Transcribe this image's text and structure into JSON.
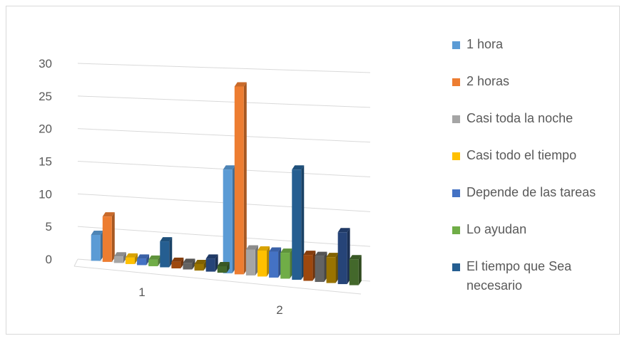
{
  "chart_data": {
    "type": "bar",
    "categories": [
      "1",
      "2"
    ],
    "ylim": [
      0,
      30
    ],
    "yticks": [
      "0",
      "5",
      "10",
      "15",
      "20",
      "25",
      "30"
    ],
    "grid": true,
    "legend_position": "right",
    "series": [
      {
        "name": "1 hora",
        "color": "#5b9bd5",
        "values": [
          4,
          16
        ]
      },
      {
        "name": "2 horas",
        "color": "#ed7d31",
        "values": [
          7,
          29
        ]
      },
      {
        "name": "Casi toda la noche",
        "color": "#a5a5a5",
        "values": [
          1,
          4
        ]
      },
      {
        "name": "Casi todo el tiempo",
        "color": "#ffc000",
        "values": [
          1,
          4
        ]
      },
      {
        "name": "Depende de las tareas",
        "color": "#4472c4",
        "values": [
          1,
          4
        ]
      },
      {
        "name": "Lo ayudan",
        "color": "#70ad47",
        "values": [
          1,
          4
        ]
      },
      {
        "name": "El tiempo que Sea necesario",
        "color": "#255e91",
        "values": [
          4,
          17
        ]
      },
      {
        "name": "",
        "color": "#9e480e",
        "values": [
          1,
          4
        ]
      },
      {
        "name": "",
        "color": "#636363",
        "values": [
          1,
          4
        ]
      },
      {
        "name": "",
        "color": "#997300",
        "values": [
          1,
          4
        ]
      },
      {
        "name": "",
        "color": "#264478",
        "values": [
          2,
          8
        ]
      },
      {
        "name": "",
        "color": "#43682b",
        "values": [
          1,
          4
        ]
      }
    ]
  }
}
